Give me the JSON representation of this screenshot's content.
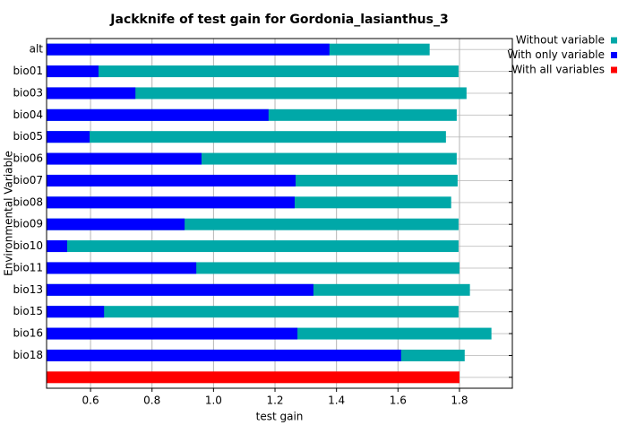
{
  "chart_data": {
    "type": "bar",
    "orientation": "horizontal",
    "title": "Jackknife of test gain for Gordonia_lasianthus_3",
    "x_label": "test gain",
    "y_label": "Environmental Variable",
    "categories": [
      "alt",
      "bio01",
      "bio03",
      "bio04",
      "bio05",
      "bio06",
      "bio07",
      "bio08",
      "bio09",
      "bio10",
      "bio11",
      "bio13",
      "bio15",
      "bio16",
      "bio18",
      null
    ],
    "series": [
      {
        "name": "Without variable",
        "color": "#00a8a8",
        "values": [
          1.703,
          1.797,
          1.823,
          1.791,
          1.756,
          1.791,
          1.794,
          1.773,
          1.797,
          1.797,
          1.8,
          1.834,
          1.797,
          1.904,
          1.817,
          null
        ]
      },
      {
        "name": "With only variable",
        "color": "#0000ff",
        "values": [
          1.377,
          0.626,
          0.746,
          1.179,
          0.597,
          0.961,
          1.267,
          1.264,
          0.906,
          0.524,
          0.944,
          1.325,
          0.644,
          1.273,
          1.61,
          null
        ]
      },
      {
        "name": "With all variables",
        "color": "#ff0000",
        "values": [
          null,
          null,
          null,
          null,
          null,
          null,
          null,
          null,
          null,
          null,
          null,
          null,
          null,
          null,
          null,
          1.8
        ]
      }
    ],
    "xlim": [
      0.457,
      1.972
    ],
    "xticks": [
      0.6,
      0.8,
      {
        "value": 1,
        "label": "1.0"
      },
      1.2,
      1.4,
      1.6,
      1.8
    ],
    "grid": true,
    "legend": "top-right"
  }
}
